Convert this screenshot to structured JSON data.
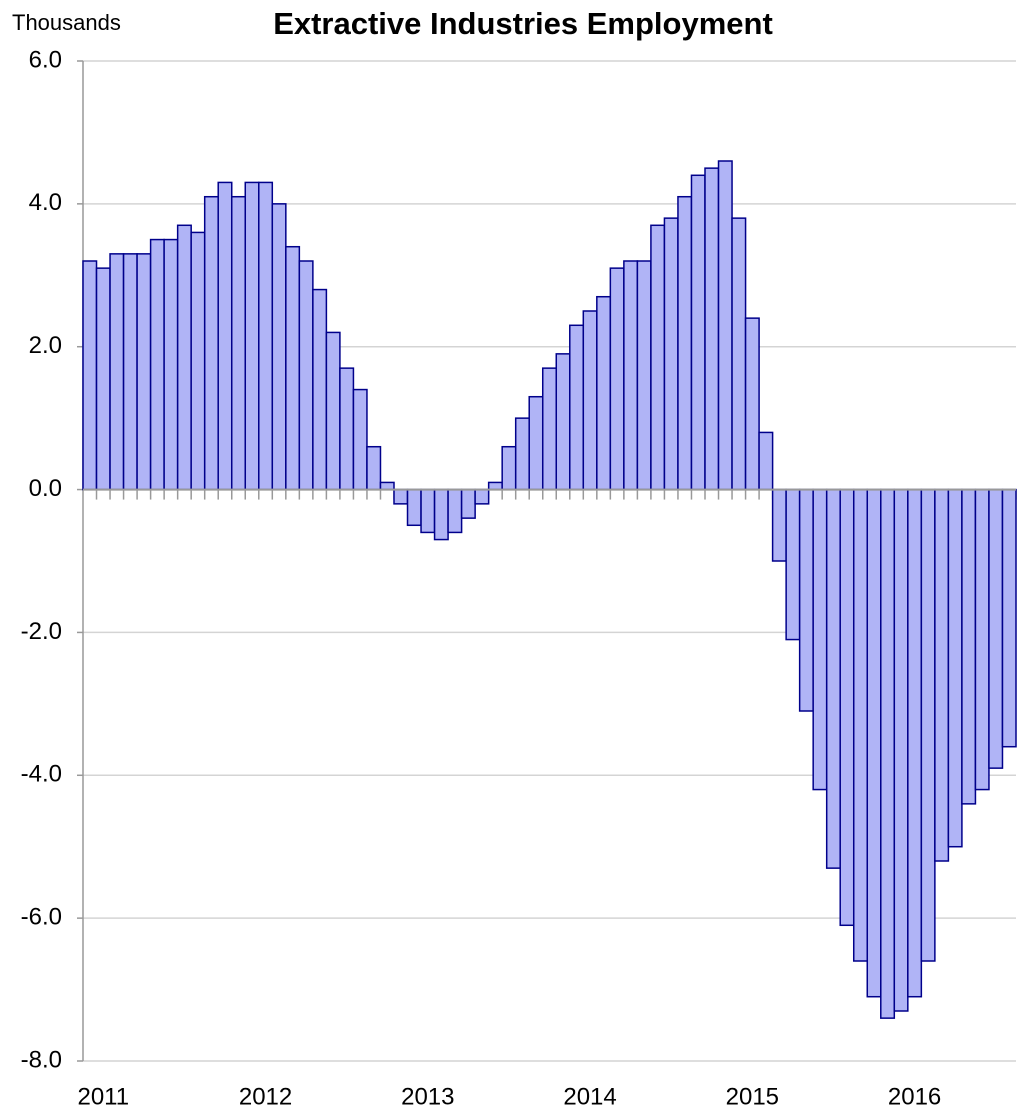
{
  "chart_data": {
    "type": "bar",
    "title": "Extractive Industries Employment",
    "y_axis_label": "Thousands",
    "categories": [
      "2011",
      null,
      null,
      null,
      null,
      null,
      null,
      null,
      null,
      null,
      null,
      null,
      "2012",
      null,
      null,
      null,
      null,
      null,
      null,
      null,
      null,
      null,
      null,
      null,
      "2013",
      null,
      null,
      null,
      null,
      null,
      null,
      null,
      null,
      null,
      null,
      null,
      "2014",
      null,
      null,
      null,
      null,
      null,
      null,
      null,
      null,
      null,
      null,
      null,
      "2015",
      null,
      null,
      null,
      null,
      null,
      null,
      null,
      null,
      null,
      null,
      null,
      "2016",
      null,
      null,
      null,
      null,
      null,
      null,
      null,
      null
    ],
    "values": [
      3.2,
      3.1,
      3.3,
      3.3,
      3.3,
      3.5,
      3.5,
      3.7,
      3.6,
      4.1,
      4.3,
      4.1,
      4.3,
      4.3,
      4.0,
      3.4,
      3.2,
      2.8,
      2.2,
      1.7,
      1.4,
      0.6,
      0.1,
      -0.2,
      -0.5,
      -0.6,
      -0.7,
      -0.6,
      -0.4,
      -0.2,
      0.1,
      0.6,
      1.0,
      1.3,
      1.7,
      1.9,
      2.3,
      2.5,
      2.7,
      3.1,
      3.2,
      3.2,
      3.7,
      3.8,
      4.1,
      4.4,
      4.5,
      4.6,
      3.8,
      2.4,
      0.8,
      -1.0,
      -2.1,
      -3.1,
      -4.2,
      -5.3,
      -6.1,
      -6.6,
      -7.1,
      -7.4,
      -7.3,
      -7.1,
      -6.6,
      -5.2,
      -5.0,
      -4.4,
      -4.2,
      -3.9,
      -3.6
    ],
    "color": "#b0b4f6",
    "edge_color": "#00008b",
    "ylim": [
      -8,
      6
    ],
    "yticks": [
      {
        "value": -8,
        "label": "-8.0"
      },
      {
        "value": -6,
        "label": "-6.0"
      },
      {
        "value": -4,
        "label": "-4.0"
      },
      {
        "value": -2,
        "label": "-2.0"
      },
      {
        "value": 0,
        "label": "0.0"
      },
      {
        "value": 2,
        "label": "2.0"
      },
      {
        "value": 4,
        "label": "4.0"
      },
      {
        "value": 6,
        "label": "6.0"
      }
    ],
    "grid": true
  }
}
